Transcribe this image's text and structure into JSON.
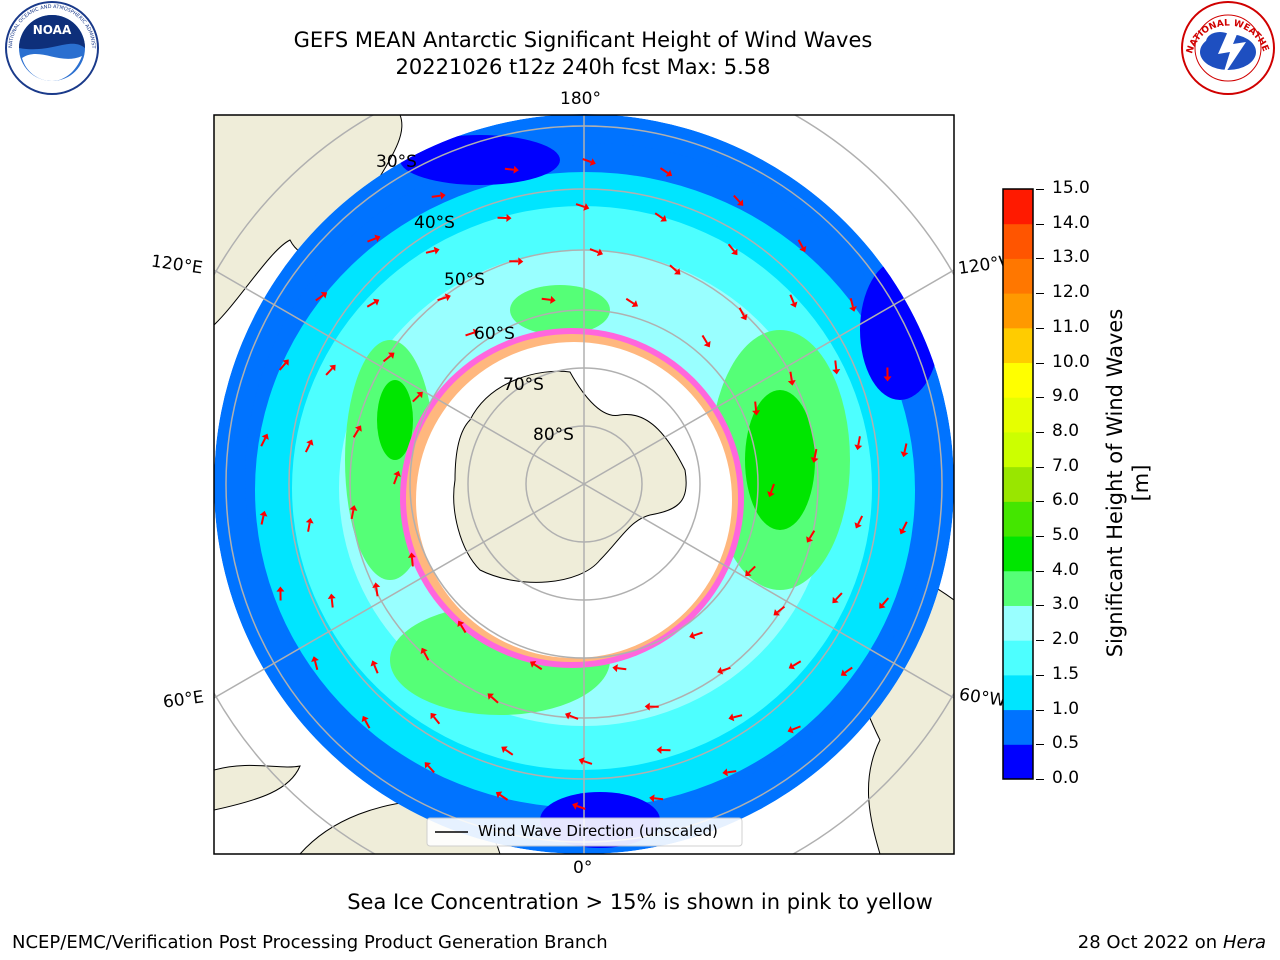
{
  "header": {
    "title_line1": "GEFS MEAN Antarctic Significant Height of Wind Waves",
    "title_line2": "20221026 t12z 240h fcst   Max: 5.58"
  },
  "logos": {
    "left": {
      "name": "NOAA",
      "ring_text": "NATIONAL OCEANIC AND ATMOSPHERIC ADMINISTRATION · U.S. DEPARTMENT OF COMMERCE"
    },
    "right": {
      "name": "NATIONAL WEATHER SERVICE"
    }
  },
  "map": {
    "lon_labels": {
      "top": "180°",
      "bottom": "0°",
      "upper_left": "120°E",
      "upper_right": "120°W",
      "lower_left": "60°E",
      "lower_right": "60°W"
    },
    "lat_labels": [
      "30°S",
      "40°S",
      "50°S",
      "60°S",
      "70°S",
      "80°S"
    ],
    "legend_label": "Wind Wave Direction (unscaled)",
    "land_color": "#efedd9",
    "arrow_color": "#ff0000"
  },
  "colorbar": {
    "label": "Significant Height of Wind Waves [m]",
    "ticks": [
      "0.0",
      "0.5",
      "1.0",
      "1.5",
      "2.0",
      "3.0",
      "4.0",
      "5.0",
      "6.0",
      "7.0",
      "8.0",
      "9.0",
      "10.0",
      "11.0",
      "12.0",
      "13.0",
      "14.0",
      "15.0"
    ],
    "colors": [
      "#0000ff",
      "#0073ff",
      "#00e5ff",
      "#4dffff",
      "#99ffff",
      "#55ff77",
      "#00e600",
      "#44e600",
      "#99e600",
      "#ccff00",
      "#e6ff00",
      "#ffff00",
      "#ffcc00",
      "#ff9900",
      "#ff7700",
      "#ff5500",
      "#ff1a00"
    ]
  },
  "caption": "Sea Ice Concentration > 15% is shown in pink to yellow",
  "footer": {
    "left": "NCEP/EMC/Verification Post Processing Product Generation Branch",
    "date": "28 Oct 2022 on",
    "host": "Hera"
  }
}
